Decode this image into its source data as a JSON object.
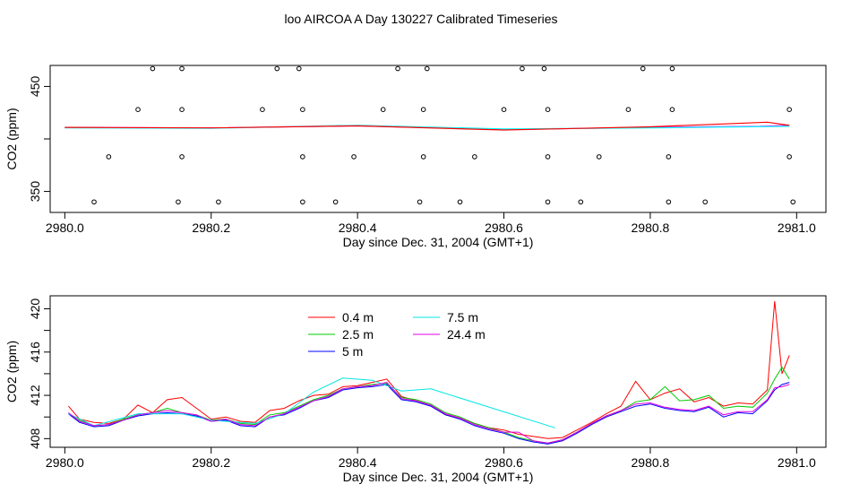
{
  "title": "loo AIRCOA A  Day 130227  Calibrated Timeseries",
  "chart_data": [
    {
      "type": "scatter",
      "xlabel": "Day since Dec. 31, 2004 (GMT+1)",
      "ylabel": "CO2 (ppm)",
      "xlim": [
        2979.98,
        2981.04
      ],
      "ylim": [
        330,
        470
      ],
      "xticks": [
        "2980.0",
        "2980.2",
        "2980.4",
        "2980.6",
        "2980.8",
        "2981.0"
      ],
      "yticks": [
        "350",
        "400",
        "450"
      ],
      "ytick_labels_shown": [
        "350",
        "450"
      ],
      "points": [
        [
          2980.12,
          467
        ],
        [
          2980.16,
          467
        ],
        [
          2980.29,
          467
        ],
        [
          2980.32,
          467
        ],
        [
          2980.455,
          467
        ],
        [
          2980.495,
          467
        ],
        [
          2980.625,
          467
        ],
        [
          2980.655,
          467
        ],
        [
          2980.79,
          467
        ],
        [
          2980.83,
          467
        ],
        [
          2980.1,
          428
        ],
        [
          2980.16,
          428
        ],
        [
          2980.27,
          428
        ],
        [
          2980.325,
          428
        ],
        [
          2980.435,
          428
        ],
        [
          2980.49,
          428
        ],
        [
          2980.6,
          428
        ],
        [
          2980.66,
          428
        ],
        [
          2980.77,
          428
        ],
        [
          2980.83,
          428
        ],
        [
          2980.99,
          428
        ],
        [
          2980.06,
          383
        ],
        [
          2980.16,
          383
        ],
        [
          2980.325,
          383
        ],
        [
          2980.395,
          383
        ],
        [
          2980.49,
          383
        ],
        [
          2980.56,
          383
        ],
        [
          2980.66,
          383
        ],
        [
          2980.73,
          383
        ],
        [
          2980.825,
          383
        ],
        [
          2980.99,
          383
        ],
        [
          2980.04,
          340
        ],
        [
          2980.155,
          340
        ],
        [
          2980.21,
          340
        ],
        [
          2980.325,
          340
        ],
        [
          2980.37,
          340
        ],
        [
          2980.485,
          340
        ],
        [
          2980.54,
          340
        ],
        [
          2980.66,
          340
        ],
        [
          2980.705,
          340
        ],
        [
          2980.825,
          340
        ],
        [
          2980.875,
          340
        ],
        [
          2980.995,
          340
        ]
      ],
      "line_series": [
        {
          "color": "#ff00ff",
          "values": [
            [
              2980.0,
              411
            ],
            [
              2980.2,
              410.5
            ],
            [
              2980.4,
              412.5
            ],
            [
              2980.6,
              409
            ],
            [
              2980.8,
              411
            ],
            [
              2980.95,
              412
            ],
            [
              2980.99,
              413
            ]
          ]
        },
        {
          "color": "#00ffff",
          "values": [
            [
              2980.0,
              410.5
            ],
            [
              2980.2,
              410.2
            ],
            [
              2980.4,
              413
            ],
            [
              2980.6,
              409.5
            ],
            [
              2980.8,
              410.5
            ],
            [
              2980.99,
              412
            ]
          ]
        },
        {
          "color": "#ff0000",
          "values": [
            [
              2980.0,
              411
            ],
            [
              2980.2,
              410.5
            ],
            [
              2980.4,
              412.5
            ],
            [
              2980.6,
              408.5
            ],
            [
              2980.8,
              411.5
            ],
            [
              2980.96,
              416
            ],
            [
              2980.99,
              413
            ]
          ]
        }
      ]
    },
    {
      "type": "line",
      "xlabel": "Day since Dec. 31, 2004 (GMT+1)",
      "ylabel": "CO2 (ppm)",
      "xlim": [
        2979.98,
        2981.04
      ],
      "ylim": [
        407.2,
        421.2
      ],
      "xticks": [
        "2980.0",
        "2980.2",
        "2980.4",
        "2980.6",
        "2980.8",
        "2981.0"
      ],
      "yticks": [
        "408",
        "410",
        "412",
        "414",
        "416",
        "418",
        "420"
      ],
      "ytick_labels_shown": [
        "408",
        "412",
        "416",
        "420"
      ],
      "x": [
        2980.005,
        2980.02,
        2980.04,
        2980.06,
        2980.08,
        2980.1,
        2980.12,
        2980.14,
        2980.16,
        2980.18,
        2980.2,
        2980.22,
        2980.24,
        2980.26,
        2980.28,
        2980.3,
        2980.32,
        2980.34,
        2980.36,
        2980.38,
        2980.4,
        2980.42,
        2980.44,
        2980.46,
        2980.48,
        2980.5,
        2980.52,
        2980.54,
        2980.56,
        2980.58,
        2980.6,
        2980.62,
        2980.64,
        2980.66,
        2980.68,
        2980.7,
        2980.72,
        2980.74,
        2980.76,
        2980.78,
        2980.8,
        2980.82,
        2980.84,
        2980.86,
        2980.88,
        2980.9,
        2980.92,
        2980.94,
        2980.96,
        2980.97,
        2980.98,
        2980.99
      ],
      "series": [
        {
          "name": "0.4 m",
          "color": "#ff0000",
          "values": [
            411.0,
            409.8,
            409.5,
            409.4,
            409.8,
            411.1,
            410.4,
            411.6,
            411.8,
            410.8,
            409.8,
            410.0,
            409.6,
            409.5,
            410.6,
            410.8,
            411.5,
            412.0,
            412.1,
            412.8,
            412.9,
            413.2,
            413.5,
            411.9,
            411.5,
            411.1,
            410.2,
            409.9,
            409.4,
            409.0,
            408.8,
            408.4,
            408.2,
            408.0,
            408.1,
            408.8,
            409.5,
            410.3,
            411.0,
            413.3,
            411.6,
            412.2,
            412.6,
            411.4,
            411.8,
            411.0,
            411.3,
            411.2,
            412.5,
            420.7,
            414.0,
            415.7
          ]
        },
        {
          "name": "2.5 m",
          "color": "#00cc00",
          "values": [
            410.3,
            409.7,
            409.2,
            409.3,
            409.8,
            410.2,
            410.4,
            410.8,
            410.4,
            410.2,
            409.7,
            409.8,
            409.4,
            409.3,
            410.2,
            410.4,
            411.0,
            411.6,
            412.0,
            412.6,
            412.8,
            413.0,
            413.1,
            411.8,
            411.6,
            411.2,
            410.4,
            410.0,
            409.4,
            409.0,
            408.6,
            408.1,
            407.8,
            407.6,
            407.9,
            408.6,
            409.4,
            410.1,
            410.6,
            411.4,
            411.6,
            412.8,
            411.5,
            411.6,
            412.0,
            410.8,
            411.0,
            410.9,
            412.2,
            413.5,
            414.6,
            413.5
          ]
        },
        {
          "name": "5 m",
          "color": "#0000ff",
          "values": [
            410.3,
            409.5,
            409.1,
            409.2,
            409.7,
            410.1,
            410.3,
            410.4,
            410.3,
            410.1,
            409.6,
            409.7,
            409.2,
            409.1,
            410.0,
            410.2,
            410.8,
            411.5,
            411.8,
            412.5,
            412.7,
            412.8,
            413.0,
            411.6,
            411.4,
            411.0,
            410.2,
            409.8,
            409.2,
            408.8,
            408.5,
            408.0,
            407.7,
            407.5,
            407.8,
            408.5,
            409.3,
            410.0,
            410.5,
            411.0,
            411.2,
            410.8,
            410.6,
            410.5,
            410.9,
            410.0,
            410.4,
            410.3,
            411.5,
            412.5,
            413.0,
            413.2
          ]
        },
        {
          "name": "7.5 m",
          "color": "#00e5e5",
          "xy": [
            [
              2980.005,
              410.3
            ],
            [
              2980.04,
              409.2
            ],
            [
              2980.1,
              410.3
            ],
            [
              2980.16,
              410.3
            ],
            [
              2980.2,
              409.7
            ],
            [
              2980.26,
              409.4
            ],
            [
              2980.3,
              410.3
            ],
            [
              2980.34,
              412.3
            ],
            [
              2980.38,
              413.6
            ],
            [
              2980.42,
              413.4
            ],
            [
              2980.46,
              412.4
            ],
            [
              2980.5,
              412.6
            ],
            [
              2980.67,
              409.0
            ]
          ]
        },
        {
          "name": "24.4 m",
          "color": "#e000e0",
          "values": [
            410.4,
            409.6,
            409.2,
            409.3,
            409.7,
            410.2,
            410.4,
            410.6,
            410.4,
            410.2,
            409.6,
            409.8,
            409.3,
            409.2,
            410.0,
            410.3,
            410.9,
            411.5,
            411.9,
            412.6,
            412.8,
            412.9,
            413.2,
            411.7,
            411.5,
            411.1,
            410.3,
            409.9,
            409.3,
            408.9,
            408.6,
            408.6,
            407.8,
            407.6,
            407.9,
            408.6,
            409.4,
            410.1,
            410.6,
            411.2,
            411.3,
            410.9,
            410.7,
            410.6,
            411.0,
            410.2,
            410.5,
            410.5,
            411.6,
            412.7,
            412.8,
            413.0
          ]
        }
      ]
    }
  ]
}
